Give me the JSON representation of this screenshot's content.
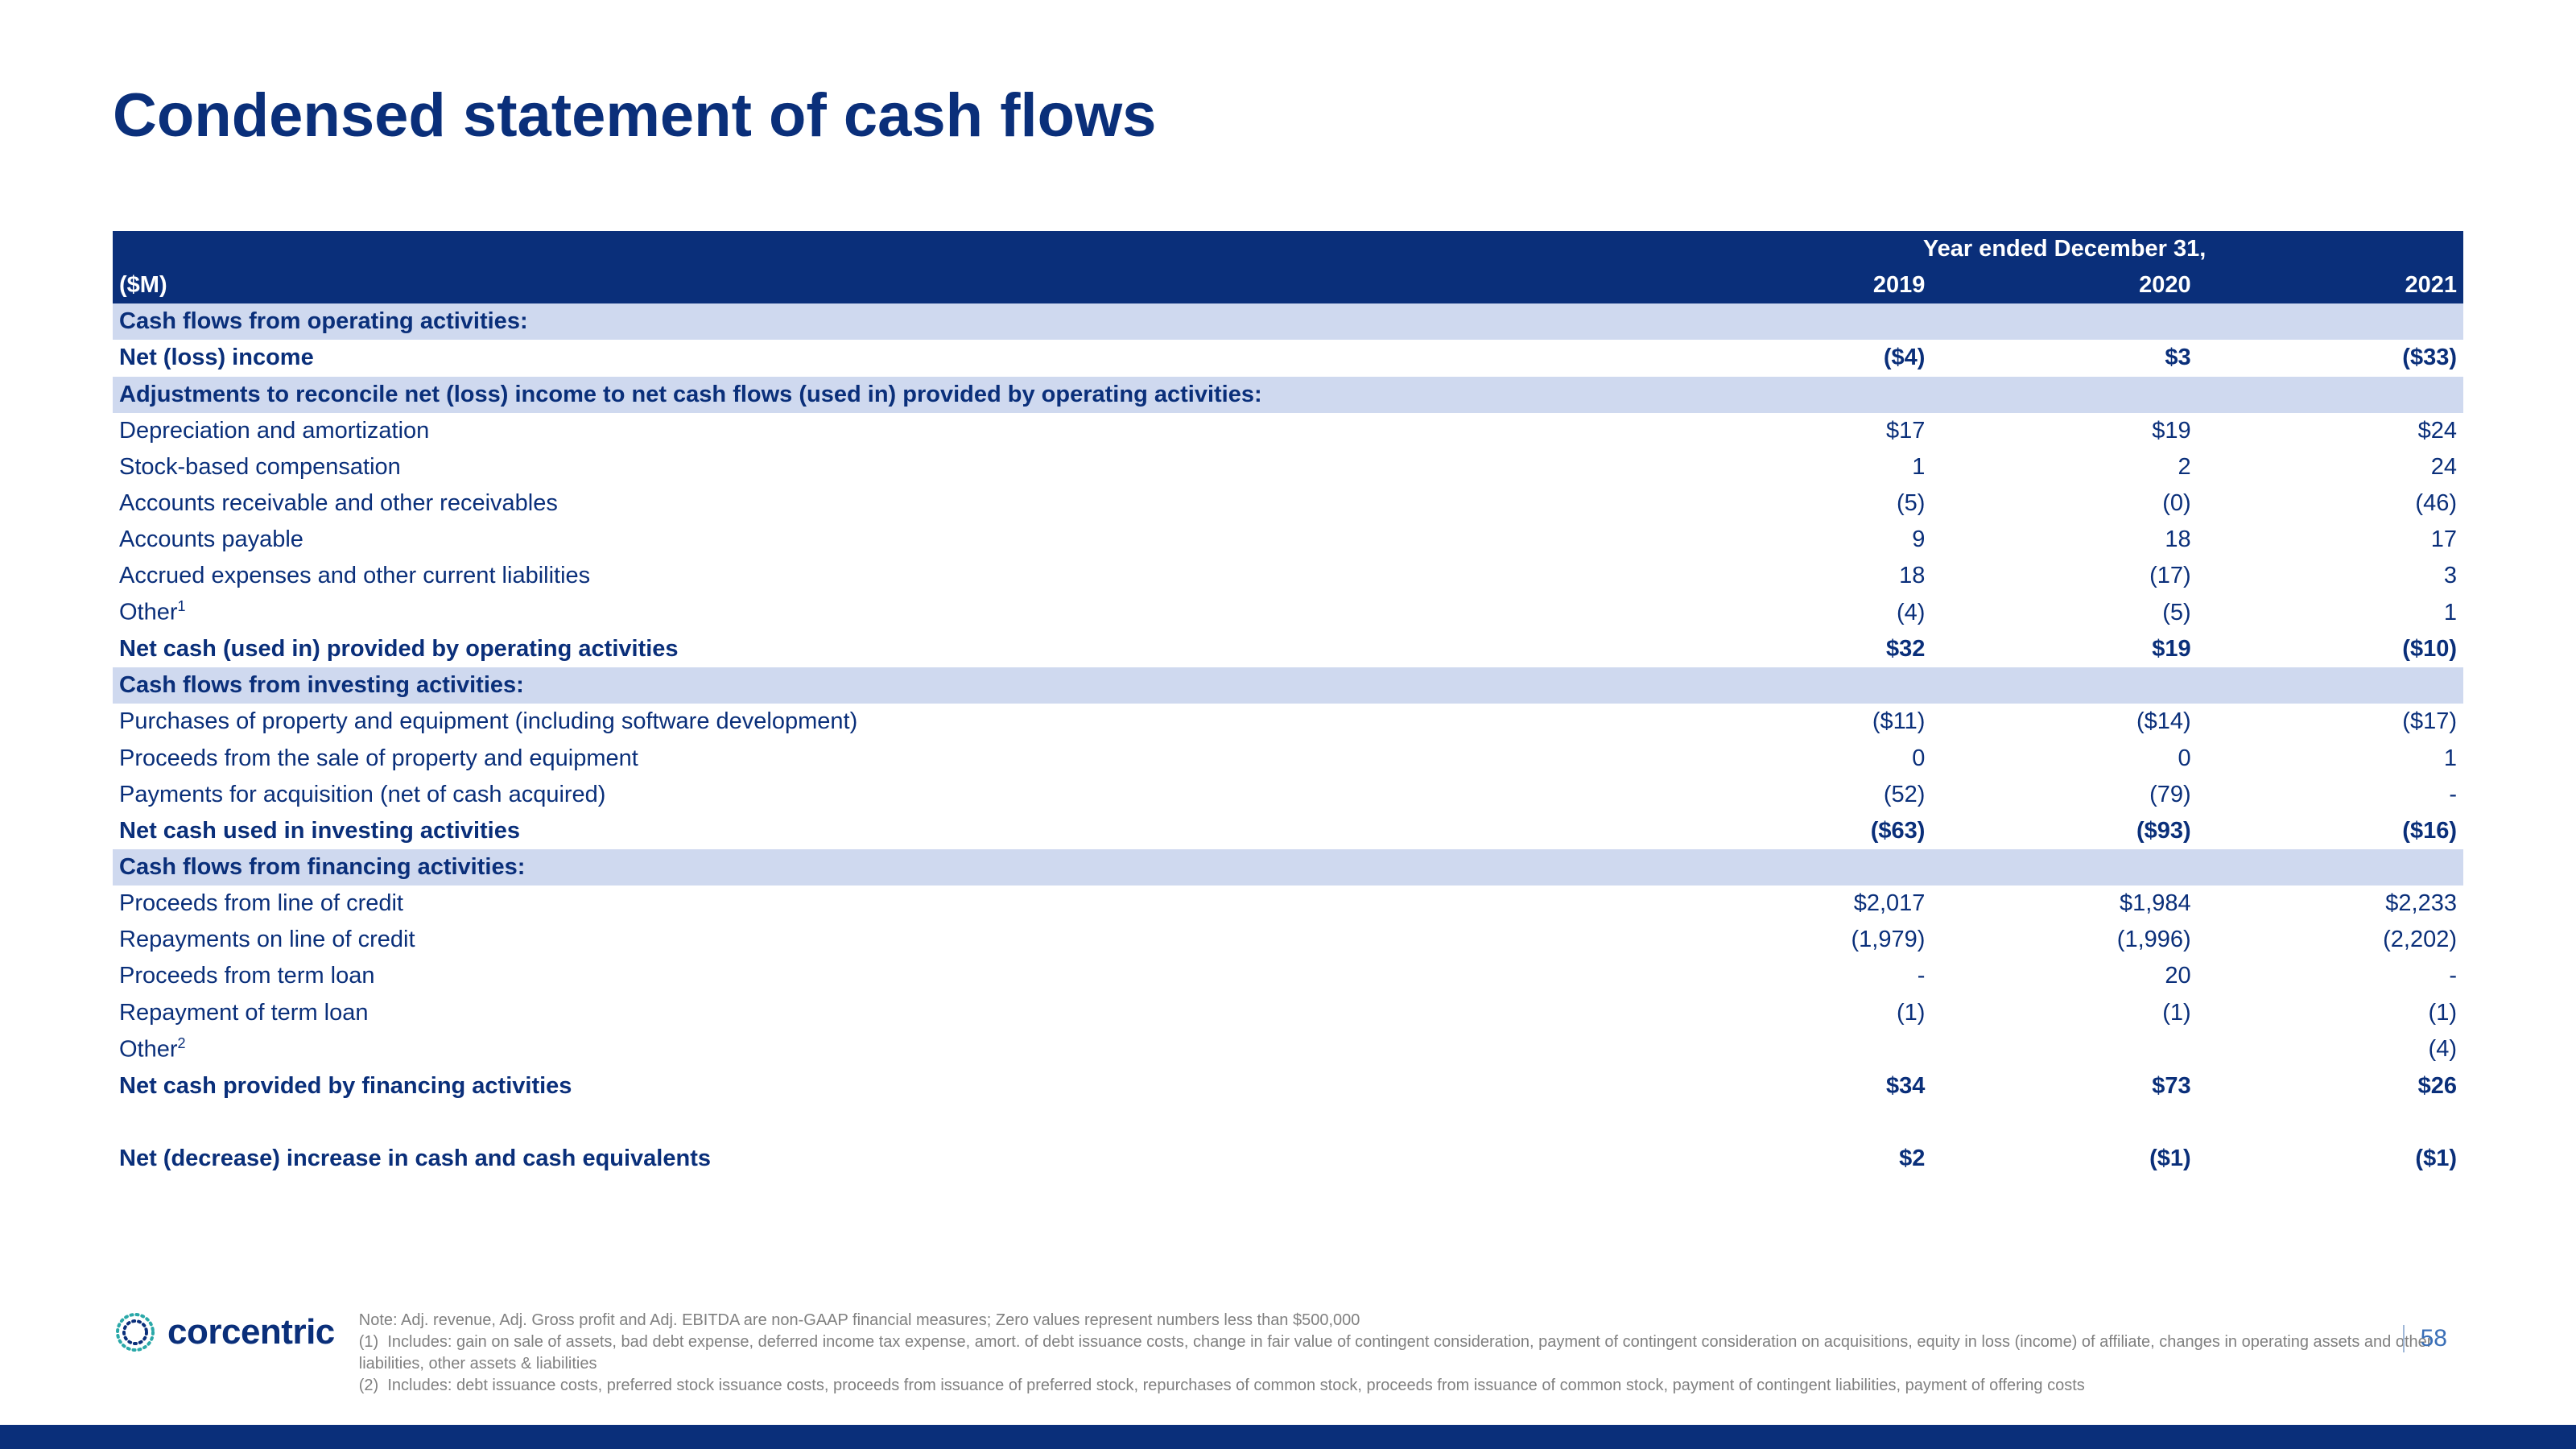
{
  "title": "Condensed statement of cash flows",
  "page_number": "58",
  "colors": {
    "brand_navy": "#0a2f7a",
    "section_bg": "#cfd9ef",
    "text_grey": "#808080",
    "white": "#ffffff"
  },
  "table": {
    "unit_label": "($M)",
    "period_label": "Year ended December 31,",
    "years": [
      "2019",
      "2020",
      "2021"
    ],
    "rows": [
      {
        "type": "section",
        "label": "Cash flows from operating activities:"
      },
      {
        "type": "bold",
        "label": "Net (loss) income",
        "v": [
          "($4)",
          "$3",
          "($33)"
        ]
      },
      {
        "type": "section",
        "label": "Adjustments to reconcile net (loss) income to net cash flows (used in) provided by operating activities:"
      },
      {
        "type": "indent",
        "label": "Depreciation and amortization",
        "v": [
          "$17",
          "$19",
          "$24"
        ]
      },
      {
        "type": "indent",
        "label": "Stock-based compensation",
        "v": [
          "1",
          "2",
          "24"
        ]
      },
      {
        "type": "indent",
        "label": "Accounts receivable and other receivables",
        "v": [
          "(5)",
          "(0)",
          "(46)"
        ]
      },
      {
        "type": "indent",
        "label": "Accounts payable",
        "v": [
          "9",
          "18",
          "17"
        ]
      },
      {
        "type": "indent",
        "label": "Accrued expenses and other current liabilities",
        "v": [
          "18",
          "(17)",
          "3"
        ]
      },
      {
        "type": "indent",
        "label": "Other",
        "sup": "1",
        "v": [
          "(4)",
          "(5)",
          "1"
        ]
      },
      {
        "type": "bold",
        "label": "Net cash (used in) provided by operating activities",
        "v": [
          "$32",
          "$19",
          "($10)"
        ]
      },
      {
        "type": "section",
        "label": "Cash flows from investing activities:"
      },
      {
        "type": "indent",
        "label": "Purchases of property and equipment (including software development)",
        "v": [
          "($11)",
          "($14)",
          "($17)"
        ]
      },
      {
        "type": "indent",
        "label": "Proceeds from the sale of property and equipment",
        "v": [
          "0",
          "0",
          "1"
        ]
      },
      {
        "type": "indent",
        "label": "Payments for acquisition (net of cash acquired)",
        "v": [
          "(52)",
          "(79)",
          "-"
        ]
      },
      {
        "type": "bold",
        "label": "Net cash used in investing activities",
        "v": [
          "($63)",
          "($93)",
          "($16)"
        ]
      },
      {
        "type": "section",
        "label": "Cash flows from financing activities:"
      },
      {
        "type": "indent",
        "label": "Proceeds from line of credit",
        "v": [
          "$2,017",
          "$1,984",
          "$2,233"
        ]
      },
      {
        "type": "indent",
        "label": "Repayments on line of credit",
        "v": [
          "(1,979)",
          "(1,996)",
          "(2,202)"
        ]
      },
      {
        "type": "indent",
        "label": "Proceeds from term loan",
        "v": [
          "-",
          "20",
          "-"
        ]
      },
      {
        "type": "indent",
        "label": "Repayment of term loan",
        "v": [
          "(1)",
          "(1)",
          "(1)"
        ]
      },
      {
        "type": "indent",
        "label": "Other",
        "sup": "2",
        "v": [
          "",
          "",
          "(4)"
        ]
      },
      {
        "type": "bold",
        "label": "Net cash provided by financing activities",
        "v": [
          "$34",
          "$73",
          "$26"
        ]
      },
      {
        "type": "spacer"
      },
      {
        "type": "bold",
        "label": "Net (decrease) increase in cash and cash equivalents",
        "v": [
          "$2",
          "($1)",
          "($1)"
        ]
      }
    ]
  },
  "logo_text": "corcentric",
  "notes": {
    "intro": "Note: Adj. revenue, Adj. Gross profit and Adj. EBITDA are non-GAAP financial measures; Zero values represent numbers less than $500,000",
    "n1_prefix": "(1)",
    "n1": "Includes: gain on sale of assets, bad debt expense,  deferred income tax expense, amort. of debt issuance costs, change in fair value of contingent consideration, payment of contingent consideration on acquisitions, equity in loss (income) of affiliate, changes in operating assets and other liabilities, other assets & liabilities",
    "n2_prefix": "(2)",
    "n2": "Includes: debt issuance costs, preferred stock issuance costs, proceeds from issuance of preferred stock, repurchases of common stock, proceeds from issuance of common stock, payment of contingent liabilities, payment of offering costs"
  }
}
